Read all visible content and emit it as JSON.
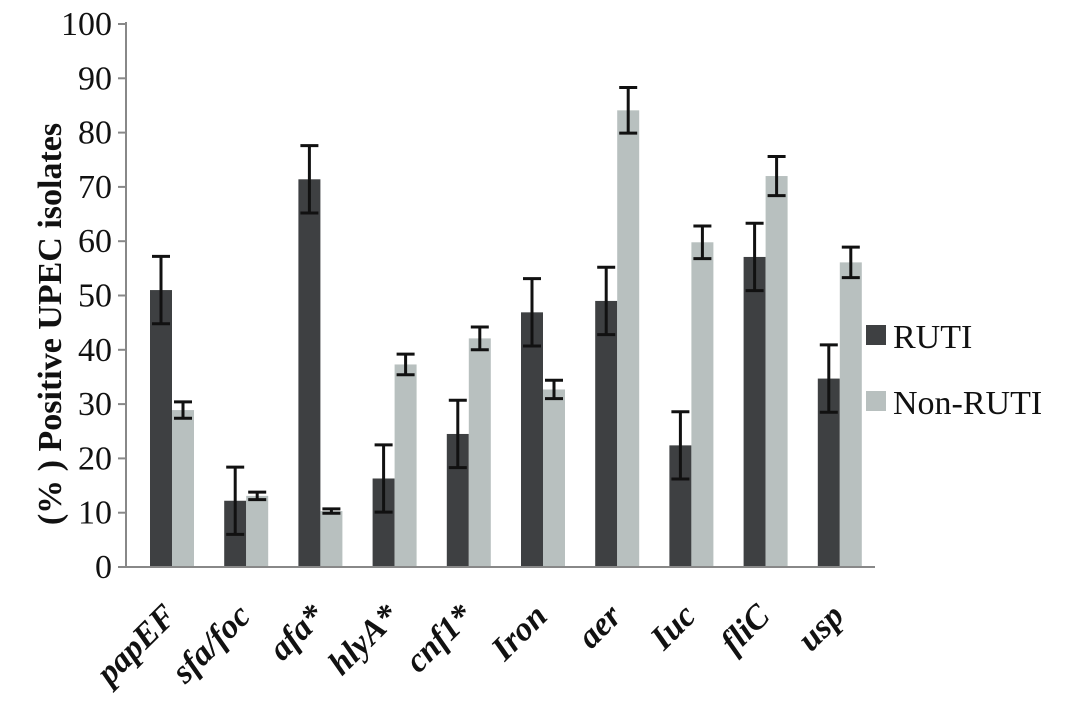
{
  "chart_data": {
    "type": "bar",
    "title": "",
    "xlabel": "",
    "ylabel": "(% ) Positive UPEC isolates",
    "ylim": [
      0,
      100
    ],
    "yticks": [
      0,
      10,
      20,
      30,
      40,
      50,
      60,
      70,
      80,
      90,
      100
    ],
    "categories": [
      "papEF",
      "sfa/foc",
      "afa*",
      "hlyA*",
      "cnf1*",
      "Iron",
      "aer",
      "Iuc",
      "fliC",
      "usp"
    ],
    "series": [
      {
        "name": "RUTI",
        "color": "#3e4042",
        "values": [
          51,
          12.2,
          71.4,
          16.3,
          24.5,
          46.9,
          49,
          22.4,
          57.1,
          34.7
        ],
        "errors": [
          6.2,
          6.2,
          6.2,
          6.2,
          6.2,
          6.2,
          6.2,
          6.2,
          6.2,
          6.2
        ]
      },
      {
        "name": "Non-RUTI",
        "color": "#b8c0bf",
        "values": [
          28.9,
          13.1,
          10.3,
          37.3,
          42.1,
          32.7,
          84.1,
          59.8,
          72,
          56.1
        ],
        "errors": [
          1.5,
          0.7,
          0.4,
          1.9,
          2.1,
          1.7,
          4.2,
          3,
          3.6,
          2.8
        ]
      }
    ],
    "grid": false,
    "legend": "right"
  }
}
